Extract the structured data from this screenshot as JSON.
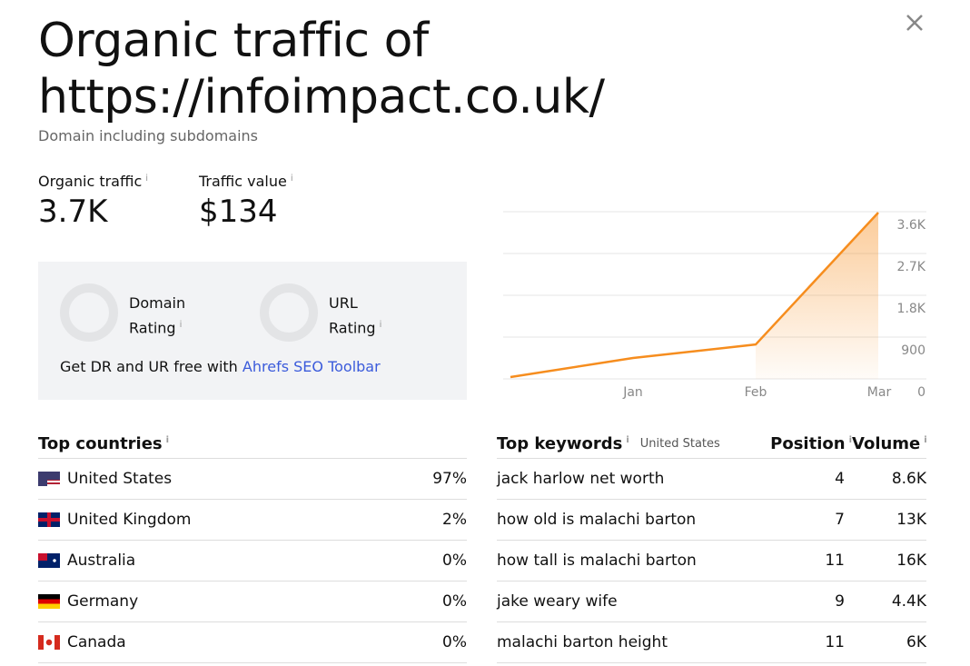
{
  "header": {
    "title": "Organic traffic of https://infoimpact.co.uk/",
    "subtitle": "Domain including subdomains"
  },
  "metrics": [
    {
      "label": "Organic traffic",
      "value": "3.7K"
    },
    {
      "label": "Traffic value",
      "value": "$134"
    }
  ],
  "ratings": {
    "domain": "Domain Rating",
    "url": "URL Rating",
    "promo": "Get DR and UR free with",
    "link": "Ahrefs SEO Toolbar"
  },
  "chart_data": {
    "type": "area",
    "categories": [
      null,
      "Jan",
      "Feb",
      "Mar"
    ],
    "values": [
      40,
      450,
      740,
      3580
    ],
    "color": "#f68d1e",
    "ylim": [
      0,
      3600
    ],
    "yticks": [
      0,
      900,
      {
        "value": 1800,
        "label": "1.8K"
      },
      {
        "value": 2700,
        "label": "2.7K"
      },
      {
        "value": 3600,
        "label": "3.6K"
      }
    ],
    "grid": true
  },
  "countries": {
    "title": "Top countries",
    "rows": [
      [
        "United States",
        "97%"
      ],
      [
        "United Kingdom",
        "2%"
      ],
      [
        "Australia",
        "0%"
      ],
      [
        "Germany",
        "0%"
      ],
      [
        "Canada",
        "0%"
      ]
    ]
  },
  "keywords": {
    "title": "Top keywords",
    "country": "United States",
    "columns": [
      "Position",
      "Volume"
    ],
    "rows": [
      [
        "jack harlow net worth",
        "4",
        "8.6K"
      ],
      [
        "how old is malachi barton",
        "7",
        "13K"
      ],
      [
        "how tall is malachi barton",
        "11",
        "16K"
      ],
      [
        "jake weary wife",
        "9",
        "4.4K"
      ],
      [
        "malachi barton height",
        "11",
        "6K"
      ]
    ]
  }
}
